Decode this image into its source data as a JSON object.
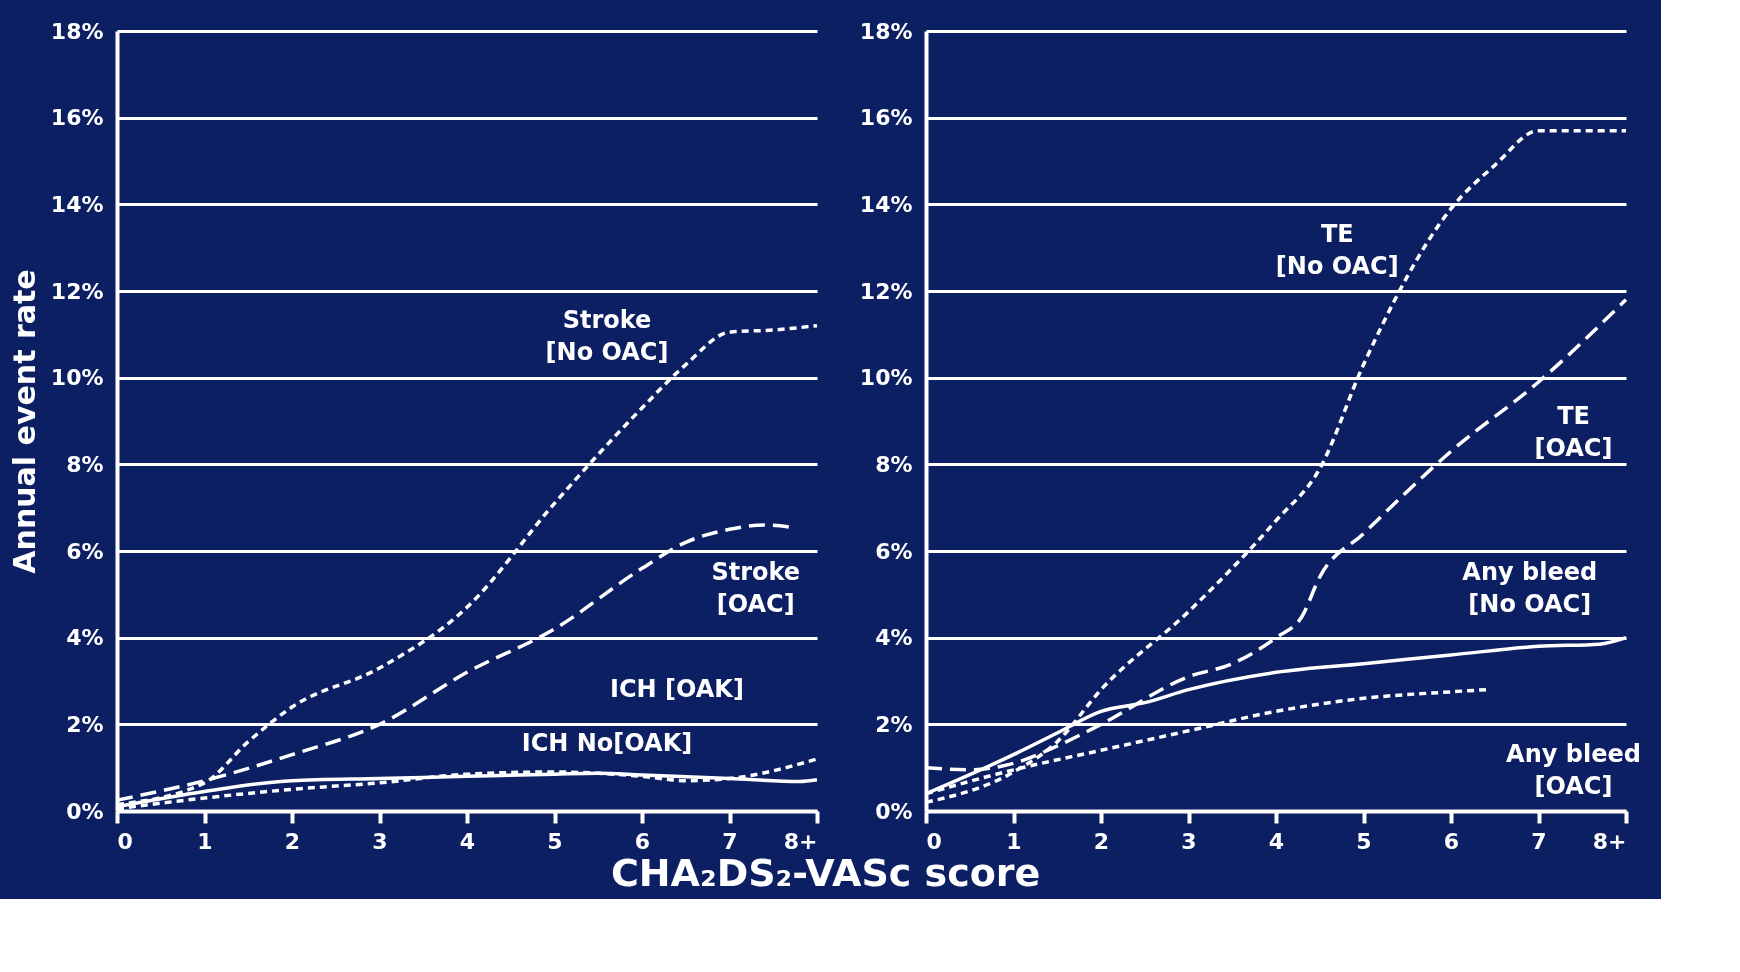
{
  "chart_data": [
    {
      "type": "line",
      "ylabel": "Annual event rate",
      "xlabel": "CHA₂DS₂-VASc score",
      "xlim": [
        0,
        8
      ],
      "xticks": [
        0,
        1,
        2,
        3,
        4,
        5,
        6,
        7,
        {
          "value": 8,
          "label": "8+"
        }
      ],
      "ylim": [
        0,
        18
      ],
      "yticks": [
        {
          "value": 0,
          "label": "0%"
        },
        {
          "value": 2,
          "label": "2%"
        },
        {
          "value": 4,
          "label": "4%"
        },
        {
          "value": 6,
          "label": "6%"
        },
        {
          "value": 8,
          "label": "8%"
        },
        {
          "value": 10,
          "label": "10%"
        },
        {
          "value": 12,
          "label": "12%"
        },
        {
          "value": 14,
          "label": "14%"
        },
        {
          "value": 16,
          "label": "16%"
        },
        {
          "value": 18,
          "label": "18%"
        }
      ],
      "grid": "y",
      "marker": "none",
      "series": [
        {
          "name": "Stroke\n[No OAC]",
          "color": "#ffffff",
          "line_style": "dotted",
          "x": [
            0,
            1,
            1.5,
            2,
            3,
            4,
            5,
            6,
            6.5,
            7,
            7.5,
            8
          ],
          "values": [
            0.15,
            0.65,
            1.6,
            2.4,
            3.3,
            4.7,
            7.1,
            9.3,
            10.3,
            11.05,
            11.1,
            11.2
          ]
        },
        {
          "name": "Stroke\n[OAC]",
          "color": "#ffffff",
          "line_style": "dashed",
          "x": [
            0,
            1,
            2,
            3,
            4,
            5,
            6,
            6.5,
            7,
            7.4,
            7.7
          ],
          "values": [
            0.25,
            0.7,
            1.3,
            2.0,
            3.2,
            4.2,
            5.6,
            6.2,
            6.5,
            6.6,
            6.55
          ]
        },
        {
          "name": "ICH [OAK]",
          "color": "#ffffff",
          "line_style": "solid",
          "x": [
            0,
            1,
            2,
            3,
            4,
            5,
            5.5,
            6,
            7,
            7.8,
            8
          ],
          "values": [
            0.1,
            0.45,
            0.7,
            0.75,
            0.8,
            0.85,
            0.87,
            0.83,
            0.75,
            0.68,
            0.72
          ]
        },
        {
          "name": "ICH No[OAK]",
          "color": "#ffffff",
          "line_style": "dotted",
          "x": [
            0,
            1,
            2,
            3,
            4,
            5,
            6,
            6.5,
            7,
            8
          ],
          "values": [
            0.05,
            0.3,
            0.5,
            0.65,
            0.85,
            0.9,
            0.8,
            0.7,
            0.75,
            1.2
          ]
        }
      ]
    },
    {
      "type": "line",
      "xlim": [
        0,
        8
      ],
      "xticks": [
        0,
        1,
        2,
        3,
        4,
        5,
        6,
        7,
        {
          "value": 8,
          "label": "8+"
        }
      ],
      "ylim": [
        0,
        18
      ],
      "yticks": [
        {
          "value": 0,
          "label": "0%"
        },
        {
          "value": 2,
          "label": "2%"
        },
        {
          "value": 4,
          "label": "4%"
        },
        {
          "value": 6,
          "label": "6%"
        },
        {
          "value": 8,
          "label": "8%"
        },
        {
          "value": 10,
          "label": "10%"
        },
        {
          "value": 12,
          "label": "12%"
        },
        {
          "value": 14,
          "label": "14%"
        },
        {
          "value": 16,
          "label": "16%"
        },
        {
          "value": 18,
          "label": "18%"
        }
      ],
      "grid": "y",
      "marker": "none",
      "series": [
        {
          "name": "TE\n[No OAC]",
          "color": "#ffffff",
          "line_style": "dotted",
          "x": [
            0,
            1,
            1.5,
            2,
            3,
            4,
            4.5,
            5,
            6,
            6.5,
            7,
            7.5,
            8
          ],
          "values": [
            0.2,
            0.9,
            1.6,
            2.8,
            4.6,
            6.7,
            7.9,
            10.3,
            13.9,
            14.9,
            15.7,
            15.7,
            15.7
          ]
        },
        {
          "name": "TE\n[OAC]",
          "color": "#ffffff",
          "line_style": "dashed",
          "x": [
            0,
            0.5,
            1,
            1.5,
            2,
            3,
            3.5,
            4,
            4.3,
            4.5,
            5,
            6,
            7,
            8
          ],
          "values": [
            1.0,
            0.95,
            1.1,
            1.5,
            2.0,
            3.1,
            3.4,
            4.0,
            4.5,
            5.4,
            6.4,
            8.3,
            9.9,
            11.8
          ]
        },
        {
          "name": "Any bleed\n[No OAC]",
          "color": "#ffffff",
          "line_style": "solid",
          "x": [
            0,
            1,
            1.5,
            2,
            2.5,
            3,
            4,
            5,
            6,
            7,
            7.7,
            8
          ],
          "values": [
            0.4,
            1.3,
            1.8,
            2.3,
            2.5,
            2.8,
            3.2,
            3.4,
            3.6,
            3.8,
            3.85,
            4.0
          ]
        },
        {
          "name": "Any bleed\n[OAC]",
          "color": "#ffffff",
          "line_style": "dotted",
          "x": [
            0,
            1,
            2,
            3,
            4,
            5,
            6,
            6.4
          ],
          "values": [
            0.4,
            0.95,
            1.4,
            1.85,
            2.3,
            2.6,
            2.75,
            2.8
          ]
        }
      ]
    }
  ]
}
